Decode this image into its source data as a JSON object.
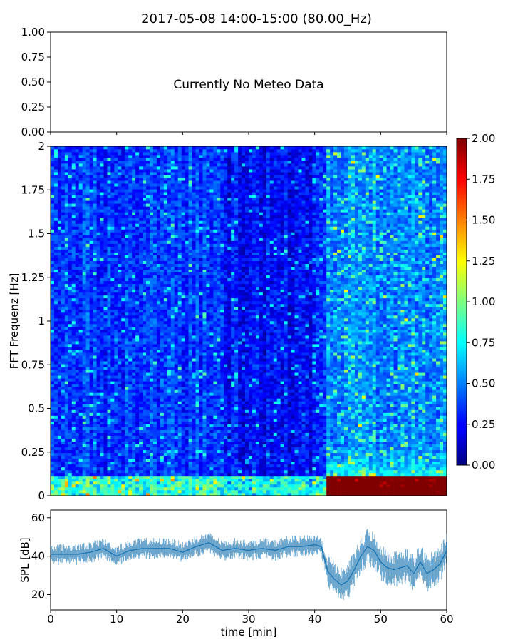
{
  "title": "2017-05-08 14:00-15:00 (80.00_Hz)",
  "chart_data": [
    {
      "type": "text",
      "message": "Currently No Meteo Data",
      "ylim": [
        0.0,
        1.0
      ],
      "yticks": [
        "0.00",
        "0.25",
        "0.50",
        "0.75",
        "1.00"
      ]
    },
    {
      "type": "heatmap",
      "ylabel": "FFT Frequenz [Hz]",
      "ylim": [
        0,
        2
      ],
      "xlim": [
        0,
        60
      ],
      "yticks": [
        "0",
        "0.25",
        "0.5",
        "0.75",
        "1",
        "1.25",
        "1.5",
        "1.75",
        "2"
      ],
      "colormap": "jet",
      "colorbar": {
        "range": [
          0.0,
          2.0
        ],
        "ticks": [
          "0.00",
          "0.25",
          "0.50",
          "0.75",
          "1.00",
          "1.25",
          "1.50",
          "1.75",
          "2.00"
        ]
      },
      "description": "Mostly low amplitude (0.1-0.4) across 0-42 min; above 42 min higher broadband levels, with amplitudes near 2.0 at frequencies below 0.1 Hz"
    },
    {
      "type": "line",
      "ylabel": "SPL [dB]",
      "xlabel": "time [min]",
      "xlim": [
        0,
        60
      ],
      "ylim": [
        12,
        64
      ],
      "yticks": [
        "20",
        "40",
        "60"
      ],
      "xticks": [
        "0",
        "10",
        "20",
        "30",
        "40",
        "50",
        "60"
      ],
      "color": "#1f77b4",
      "series": [
        {
          "x": [
            0,
            2,
            4,
            6,
            8,
            10,
            12,
            14,
            16,
            18,
            20,
            22,
            24,
            26,
            28,
            30,
            32,
            34,
            36,
            38,
            40,
            41,
            42,
            43,
            44,
            45,
            46,
            47,
            48,
            49,
            50,
            51,
            52,
            53,
            54,
            55,
            56,
            57,
            58,
            59,
            60
          ],
          "y": [
            41,
            41,
            41,
            42,
            44,
            40,
            43,
            44,
            44,
            44,
            42,
            45,
            47,
            43,
            44,
            43,
            44,
            43,
            45,
            45,
            46,
            45,
            32,
            28,
            25,
            27,
            33,
            40,
            45,
            43,
            37,
            34,
            33,
            34,
            35,
            31,
            37,
            31,
            33,
            36,
            43
          ]
        }
      ]
    }
  ]
}
